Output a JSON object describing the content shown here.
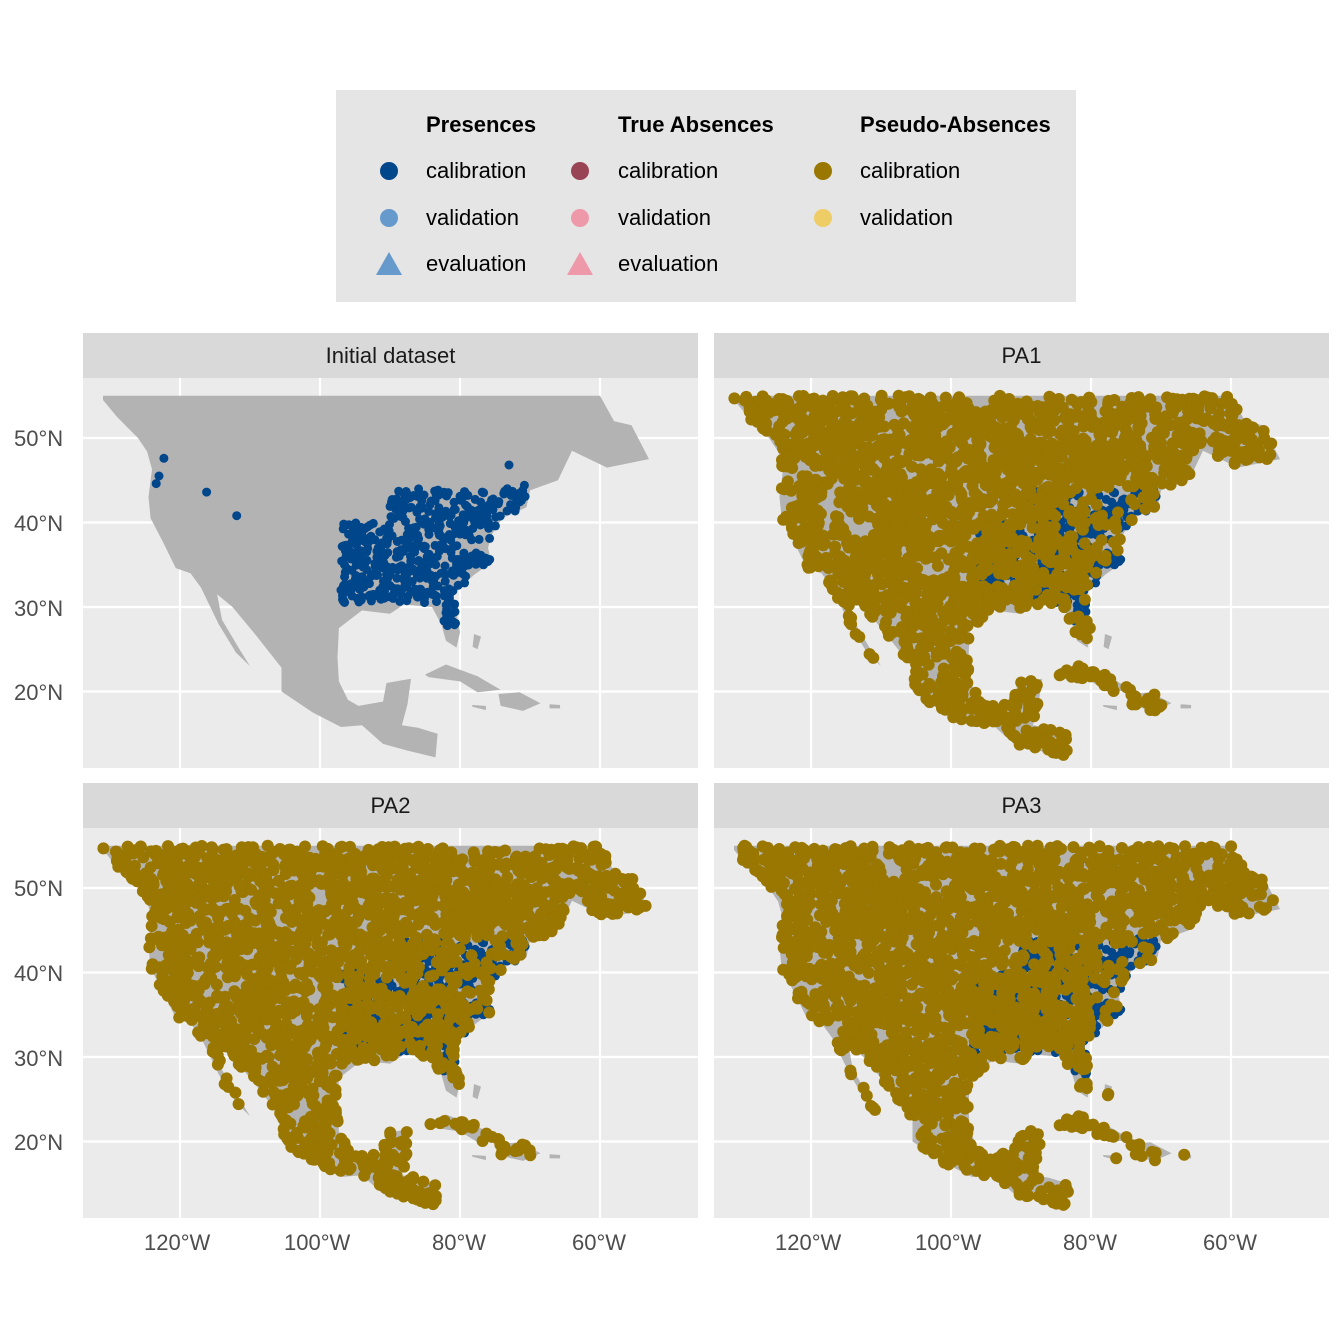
{
  "legend": {
    "groups": [
      {
        "title": "Presences",
        "items": [
          {
            "label": "calibration",
            "shape": "circle",
            "color": "#00468b"
          },
          {
            "label": "validation",
            "shape": "circle",
            "color": "#6699cc"
          },
          {
            "label": "evaluation",
            "shape": "triangle",
            "color": "#6699cc"
          }
        ]
      },
      {
        "title": "True Absences",
        "items": [
          {
            "label": "calibration",
            "shape": "circle",
            "color": "#994455"
          },
          {
            "label": "validation",
            "shape": "circle",
            "color": "#ee99aa"
          },
          {
            "label": "evaluation",
            "shape": "triangle",
            "color": "#ee99aa"
          }
        ]
      },
      {
        "title": "Pseudo-Absences",
        "items": [
          {
            "label": "calibration",
            "shape": "circle",
            "color": "#997700"
          },
          {
            "label": "validation",
            "shape": "circle",
            "color": "#eecc66"
          }
        ]
      }
    ]
  },
  "panels": [
    {
      "title": "Initial dataset"
    },
    {
      "title": "PA1"
    },
    {
      "title": "PA2"
    },
    {
      "title": "PA3"
    }
  ],
  "axes": {
    "x_ticks": [
      "120°W",
      "100°W",
      "80°W",
      "60°W"
    ],
    "y_ticks": [
      "50°N",
      "40°N",
      "30°N",
      "20°N"
    ]
  },
  "colors": {
    "land": "#b3b3b3",
    "panel_bg": "#ebebeb",
    "strip_bg": "#d9d9d9",
    "presence_calibration": "#00468b",
    "pseudo_absence_calibration": "#997700"
  },
  "chart_data": {
    "type": "scatter",
    "x_values": [
      -120,
      -100,
      -80,
      -60
    ],
    "y_values": [
      50,
      40,
      30,
      20
    ],
    "presence_points_initial": [
      [
        -122.3,
        47.6
      ],
      [
        -123.0,
        45.5
      ],
      [
        -123.4,
        44.6
      ],
      [
        -116.2,
        43.6
      ],
      [
        -111.9,
        40.8
      ],
      [
        -73.0,
        46.8
      ],
      [
        -70.8,
        44.4
      ],
      [
        -81.5,
        28.6
      ],
      [
        -81.8,
        27.8
      ],
      [
        -97.0,
        32.0
      ],
      [
        -95.8,
        31.8
      ],
      [
        -96.5,
        35.0
      ],
      [
        -94.0,
        38.5
      ]
    ]
  }
}
